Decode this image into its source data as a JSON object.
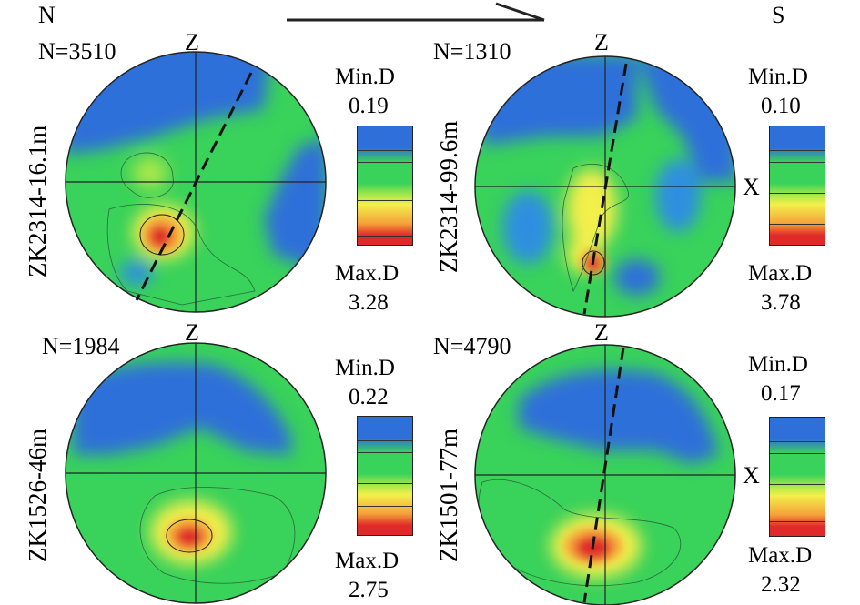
{
  "header": {
    "left_label": "N",
    "right_label": "S"
  },
  "colors": {
    "blue": "#2f6fd9",
    "green": "#39d25a",
    "yellow": "#f3ef4b",
    "orange": "#f5a23a",
    "red": "#e02a2a"
  },
  "panels": [
    {
      "id": "p1",
      "n_label": "N=3510",
      "vertical_label": "ZK2314-16.1m",
      "z_label": "Z",
      "x_label": "",
      "min_label": "Min.D",
      "min_value": "0.19",
      "max_label": "Max.D",
      "max_value": "3.28"
    },
    {
      "id": "p2",
      "n_label": "N=1310",
      "vertical_label": "ZK2314-99.6m",
      "z_label": "Z",
      "x_label": "X",
      "min_label": "Min.D",
      "min_value": "0.10",
      "max_label": "Max.D",
      "max_value": "3.78"
    },
    {
      "id": "p3",
      "n_label": "N=1984",
      "vertical_label": "ZK1526-46m",
      "z_label": "Z",
      "x_label": "",
      "min_label": "Min.D",
      "min_value": "0.22",
      "max_label": "Max.D",
      "max_value": "2.75"
    },
    {
      "id": "p4",
      "n_label": "N=4790",
      "vertical_label": "ZK1501-77m",
      "z_label": "Z",
      "x_label": "X",
      "min_label": "Min.D",
      "min_value": "0.17",
      "max_label": "Max.D",
      "max_value": "2.32"
    }
  ]
}
